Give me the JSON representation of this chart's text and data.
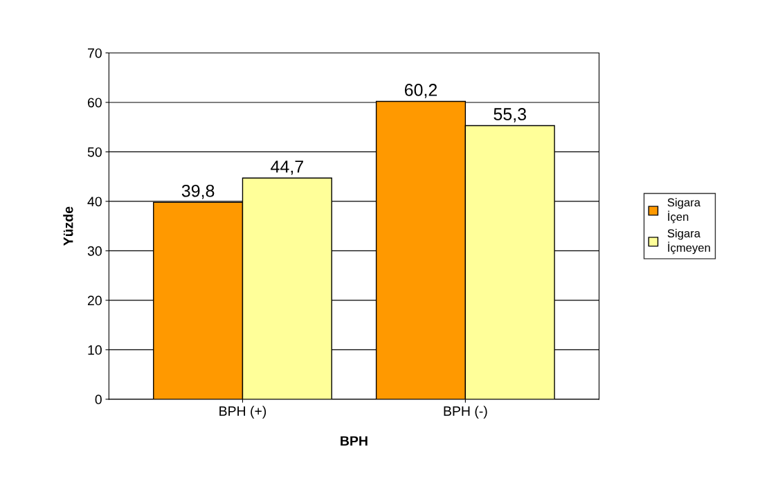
{
  "chart_data": {
    "type": "bar",
    "xlabel": "BPH",
    "ylabel": "Yüzde",
    "categories": [
      "BPH (+)",
      "BPH (-)"
    ],
    "series": [
      {
        "name": "Sigara\nİçen",
        "color": "#ff9900",
        "values": [
          39.8,
          60.2
        ],
        "value_labels": [
          "39,8",
          "60,2"
        ]
      },
      {
        "name": "Sigara\nİçmeyen",
        "color": "#ffff99",
        "values": [
          44.7,
          55.3
        ],
        "value_labels": [
          "44,7",
          "55,3"
        ]
      }
    ],
    "ylim": [
      0,
      70
    ],
    "yticks": [
      0,
      10,
      20,
      30,
      40,
      50,
      60,
      70
    ],
    "grid": "y",
    "legend": "right"
  }
}
